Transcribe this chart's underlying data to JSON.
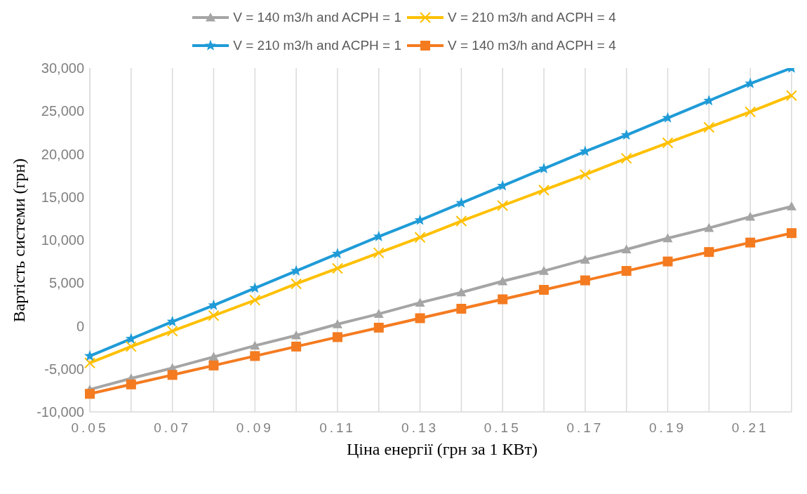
{
  "chart_data": {
    "type": "line",
    "xlabel": "Ціна енергії (грн за 1 КВт)",
    "ylabel": "Вартість системи (грн)",
    "categories": [
      "0.05",
      null,
      "0.07",
      null,
      "0.09",
      null,
      "0.11",
      null,
      "0.13",
      null,
      "0.15",
      null,
      "0.17",
      null,
      "0.19",
      null,
      "0.21",
      null
    ],
    "series": [
      {
        "name": "V = 140 m3/h and ACPH = 1",
        "color": "#a5a5a5",
        "marker": "triangle",
        "values": [
          -7400,
          -6100,
          -4900,
          -3600,
          -2300,
          -1100,
          200,
          1400,
          2700,
          3900,
          5200,
          6400,
          7700,
          8900,
          10200,
          11400,
          12700,
          13900
        ]
      },
      {
        "name": "V = 210 m3/h and ACPH = 4",
        "color": "#ffc000",
        "marker": "cross",
        "values": [
          -4300,
          -2400,
          -600,
          1200,
          3000,
          4900,
          6700,
          8500,
          10300,
          12200,
          14000,
          15800,
          17600,
          19500,
          21300,
          23100,
          24900,
          26800
        ]
      },
      {
        "name": "V = 210 m3/h and ACPH = 1",
        "color": "#1f9bd7",
        "marker": "star",
        "values": [
          -3500,
          -1500,
          500,
          2400,
          4400,
          6400,
          8400,
          10400,
          12300,
          14300,
          16300,
          18300,
          20300,
          22200,
          24200,
          26200,
          28200,
          30000
        ]
      },
      {
        "name": "V = 140 m3/h and ACPH = 4",
        "color": "#f47b20",
        "marker": "square",
        "values": [
          -7900,
          -6800,
          -5700,
          -4600,
          -3500,
          -2400,
          -1300,
          -200,
          900,
          2000,
          3100,
          4200,
          5300,
          6400,
          7500,
          8600,
          9700,
          10800
        ]
      }
    ],
    "ylim": [
      -10000,
      30000
    ],
    "yticks": [
      {
        "value": -10000,
        "label": "-10,000"
      },
      {
        "value": -5000,
        "label": "-5,000"
      },
      0,
      {
        "value": 5000,
        "label": "5,000"
      },
      {
        "value": 10000,
        "label": "10,000"
      },
      {
        "value": 15000,
        "label": "15,000"
      },
      {
        "value": 20000,
        "label": "20,000"
      },
      {
        "value": 25000,
        "label": "25,000"
      },
      {
        "value": 30000,
        "label": "30,000"
      }
    ],
    "grid": "x",
    "legend": "top",
    "line_style": "solid"
  }
}
